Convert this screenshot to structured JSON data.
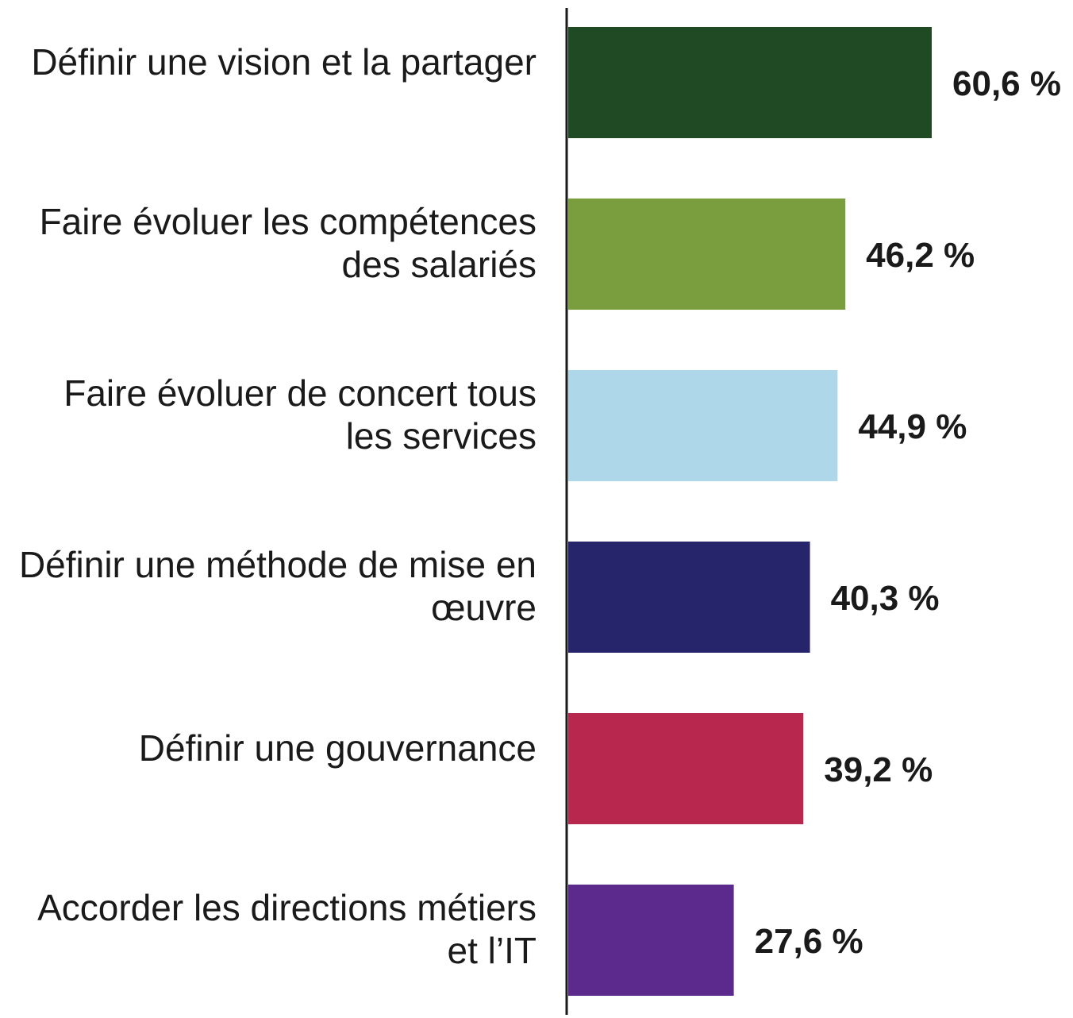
{
  "chart_data": {
    "type": "bar",
    "orientation": "horizontal",
    "categories": [
      [
        "Définir une vision et la partager"
      ],
      [
        "Faire évoluer les compétences",
        "des salariés"
      ],
      [
        "Faire évoluer de concert tous",
        "les services"
      ],
      [
        "Définir une méthode de mise en",
        "œuvre"
      ],
      [
        "Définir une gouvernance"
      ],
      [
        "Accorder les directions métiers",
        "et l’IT"
      ]
    ],
    "values": [
      60.6,
      46.2,
      44.9,
      40.3,
      39.2,
      27.6
    ],
    "value_labels": [
      "60,6 %",
      "46,2 %",
      "44,9 %",
      "40,3 %",
      "39,2 %",
      "27,6 %"
    ],
    "colors": [
      "#1f4a24",
      "#7a9e3d",
      "#aed7ea",
      "#26246b",
      "#b8284e",
      "#5b2a8c"
    ],
    "xlim": [
      0,
      60.6
    ],
    "grid": false,
    "legend": "none",
    "title": "",
    "xlabel": "",
    "ylabel": ""
  }
}
